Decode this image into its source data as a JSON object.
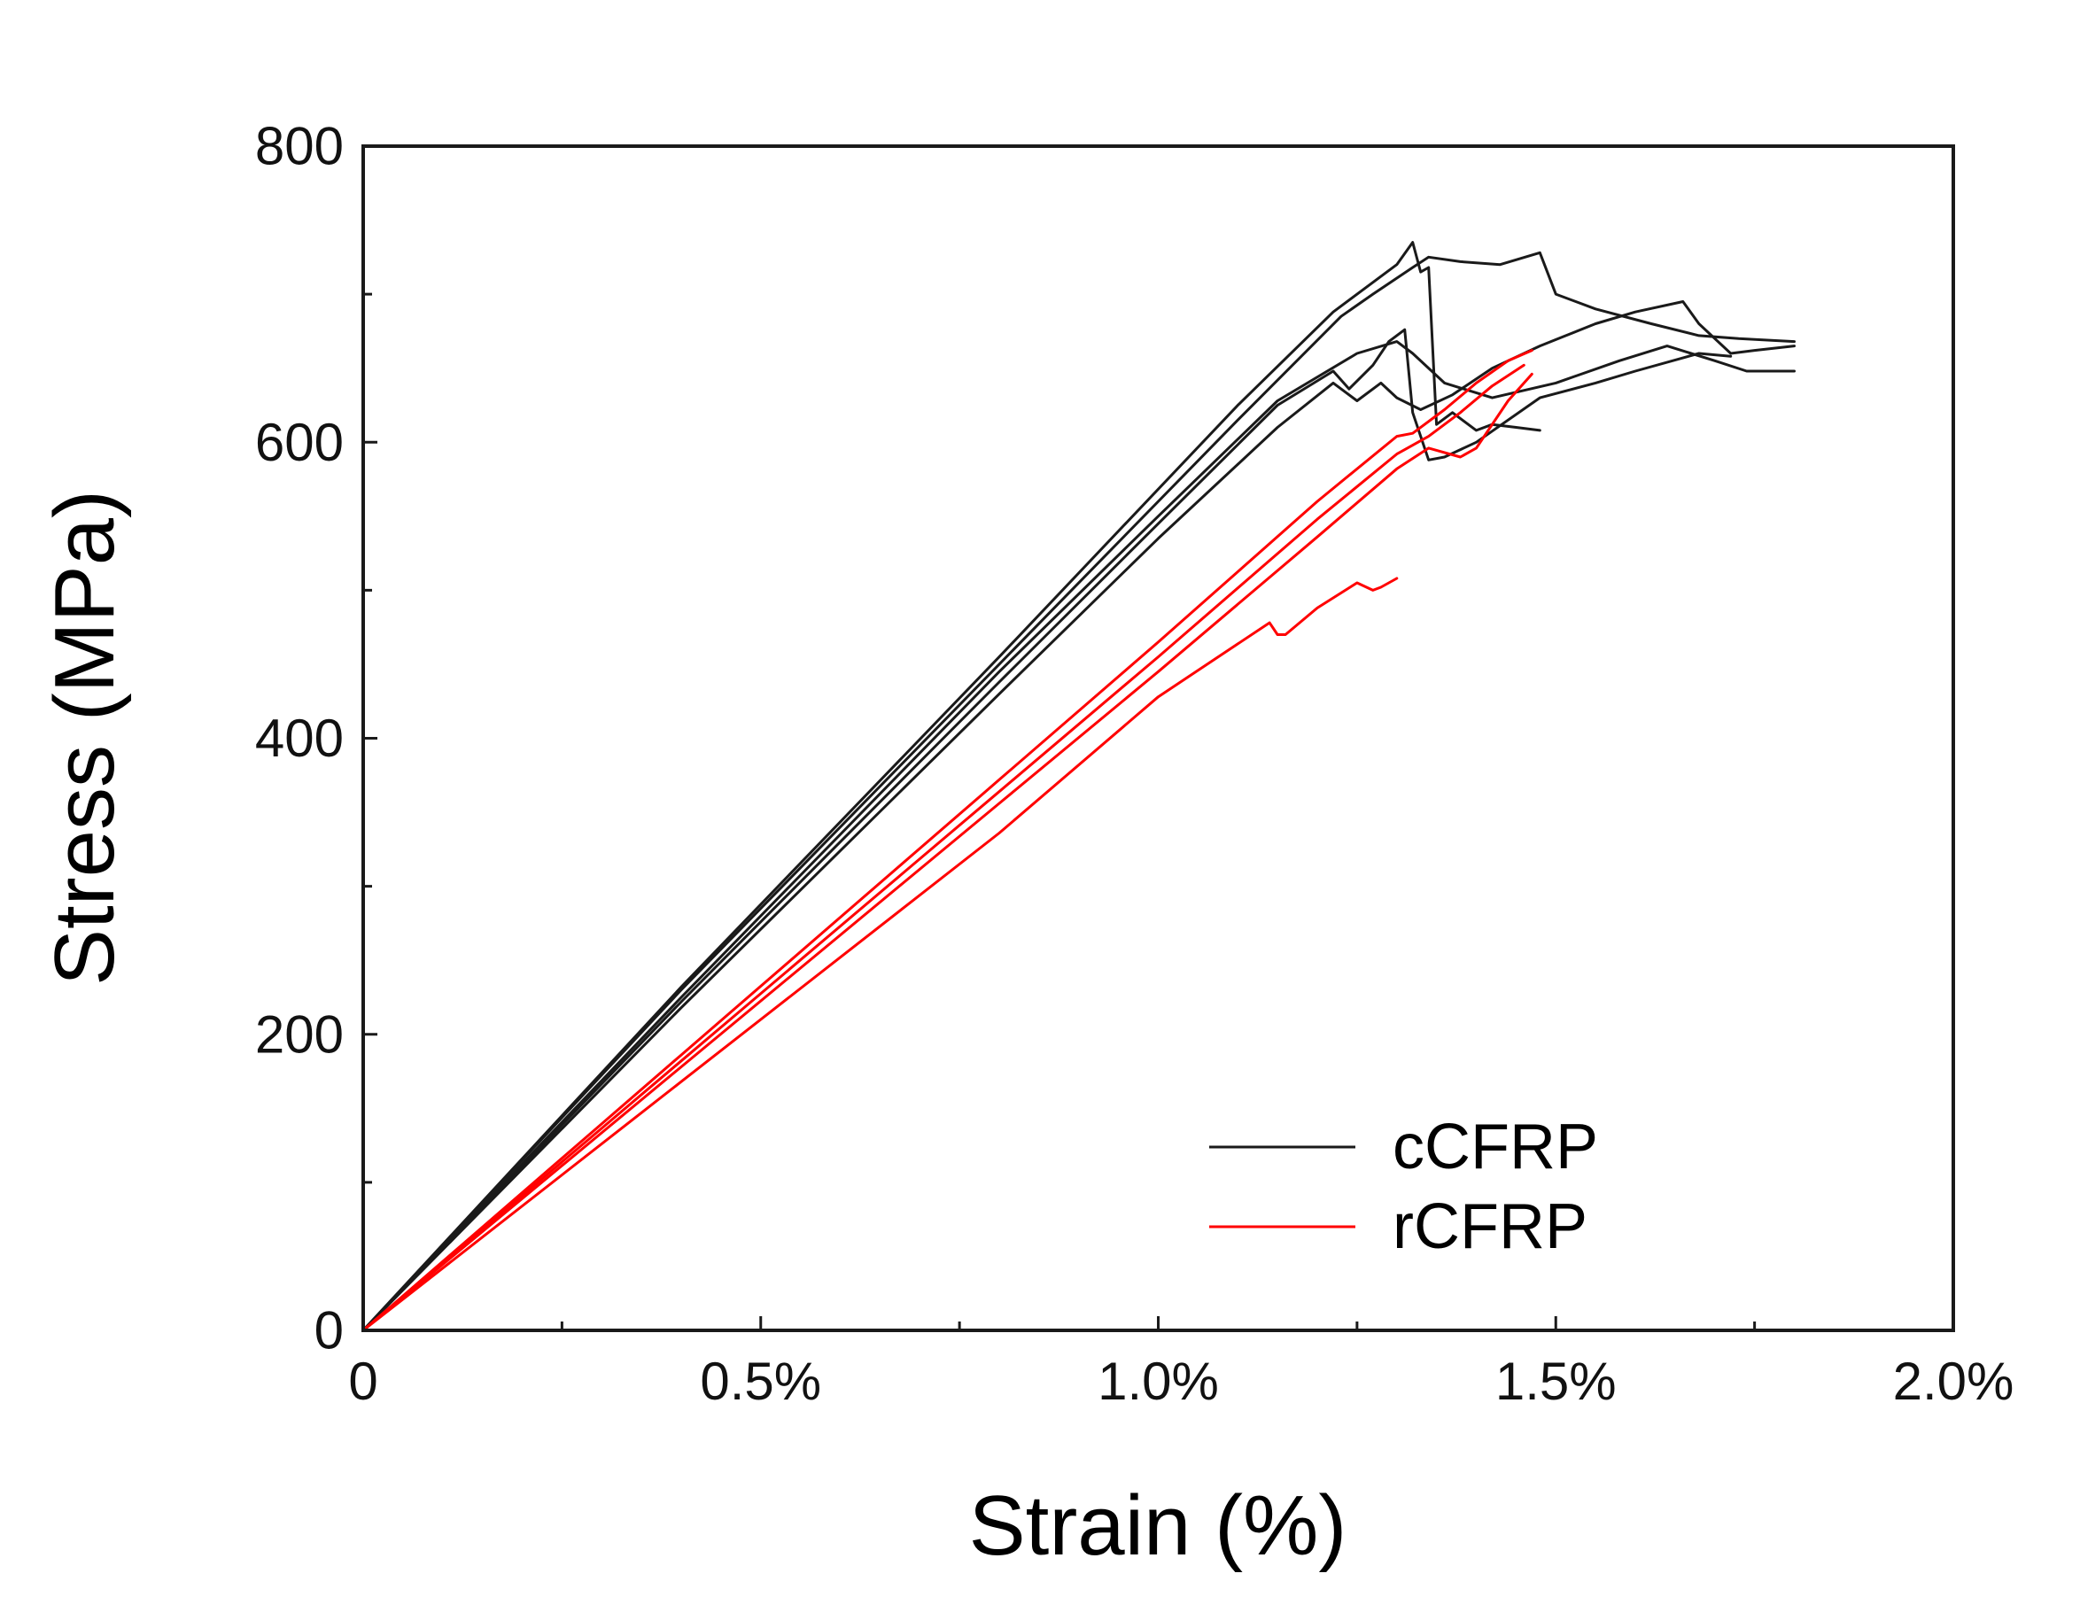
{
  "chart_data": {
    "type": "line",
    "title": "",
    "xlabel": "Strain (%)",
    "ylabel": "Stress (MPa)",
    "xlim": [
      0,
      2.0
    ],
    "ylim": [
      0,
      800
    ],
    "x_ticks": [
      0,
      0.5,
      1.0,
      1.5,
      2.0
    ],
    "x_tick_labels": [
      "0",
      "0.5%",
      "1.0%",
      "1.5%",
      "2.0%"
    ],
    "y_ticks": [
      0,
      200,
      400,
      600,
      800
    ],
    "y_tick_labels": [
      "0",
      "200",
      "400",
      "600",
      "800"
    ],
    "grid": false,
    "legend_position": "bottom-right",
    "legend": [
      {
        "label": "cCFRP",
        "color": "#1a1a1a"
      },
      {
        "label": "rCFRP",
        "color": "#ff0000"
      }
    ],
    "series": [
      {
        "name": "cCFRP",
        "color": "#1a1a1a",
        "points": [
          [
            0,
            0
          ],
          [
            0.4,
            232
          ],
          [
            0.8,
            455
          ],
          [
            1.1,
            625
          ],
          [
            1.22,
            688
          ],
          [
            1.3,
            720
          ],
          [
            1.32,
            735
          ],
          [
            1.33,
            715
          ],
          [
            1.34,
            718
          ],
          [
            1.35,
            612
          ],
          [
            1.37,
            620
          ],
          [
            1.4,
            608
          ],
          [
            1.42,
            612
          ],
          [
            1.45,
            610
          ],
          [
            1.48,
            608
          ]
        ]
      },
      {
        "name": "cCFRP",
        "color": "#1a1a1a",
        "points": [
          [
            0,
            0
          ],
          [
            0.4,
            230
          ],
          [
            0.8,
            450
          ],
          [
            1.1,
            615
          ],
          [
            1.23,
            685
          ],
          [
            1.27,
            700
          ],
          [
            1.32,
            718
          ],
          [
            1.34,
            725
          ],
          [
            1.38,
            722
          ],
          [
            1.43,
            720
          ],
          [
            1.48,
            728
          ],
          [
            1.5,
            700
          ],
          [
            1.55,
            690
          ],
          [
            1.62,
            680
          ],
          [
            1.68,
            672
          ],
          [
            1.73,
            670
          ],
          [
            1.8,
            668
          ]
        ]
      },
      {
        "name": "cCFRP",
        "color": "#1a1a1a",
        "points": [
          [
            0,
            0
          ],
          [
            0.4,
            222
          ],
          [
            0.8,
            438
          ],
          [
            1.0,
            545
          ],
          [
            1.15,
            625
          ],
          [
            1.22,
            648
          ],
          [
            1.24,
            636
          ],
          [
            1.27,
            652
          ],
          [
            1.29,
            668
          ],
          [
            1.31,
            676
          ],
          [
            1.32,
            620
          ],
          [
            1.34,
            588
          ],
          [
            1.36,
            590
          ],
          [
            1.4,
            600
          ],
          [
            1.48,
            630
          ],
          [
            1.55,
            640
          ],
          [
            1.6,
            648
          ],
          [
            1.68,
            660
          ],
          [
            1.72,
            658
          ]
        ]
      },
      {
        "name": "cCFRP",
        "color": "#1a1a1a",
        "points": [
          [
            0,
            0
          ],
          [
            0.4,
            218
          ],
          [
            0.8,
            430
          ],
          [
            1.0,
            535
          ],
          [
            1.15,
            610
          ],
          [
            1.22,
            640
          ],
          [
            1.25,
            628
          ],
          [
            1.28,
            640
          ],
          [
            1.3,
            630
          ],
          [
            1.33,
            622
          ],
          [
            1.37,
            632
          ],
          [
            1.42,
            650
          ],
          [
            1.48,
            665
          ],
          [
            1.55,
            680
          ],
          [
            1.6,
            688
          ],
          [
            1.66,
            695
          ],
          [
            1.68,
            680
          ],
          [
            1.72,
            660
          ],
          [
            1.75,
            662
          ],
          [
            1.8,
            665
          ]
        ]
      },
      {
        "name": "cCFRP",
        "color": "#1a1a1a",
        "points": [
          [
            0,
            0
          ],
          [
            0.4,
            225
          ],
          [
            0.8,
            445
          ],
          [
            1.0,
            550
          ],
          [
            1.15,
            628
          ],
          [
            1.25,
            660
          ],
          [
            1.3,
            668
          ],
          [
            1.32,
            660
          ],
          [
            1.36,
            640
          ],
          [
            1.42,
            630
          ],
          [
            1.5,
            640
          ],
          [
            1.58,
            655
          ],
          [
            1.64,
            665
          ],
          [
            1.7,
            655
          ],
          [
            1.74,
            648
          ],
          [
            1.8,
            648
          ]
        ]
      },
      {
        "name": "rCFRP",
        "color": "#ff0000",
        "points": [
          [
            0,
            0
          ],
          [
            0.4,
            186
          ],
          [
            0.8,
            372
          ],
          [
            1.0,
            465
          ],
          [
            1.2,
            560
          ],
          [
            1.3,
            604
          ],
          [
            1.32,
            606
          ],
          [
            1.36,
            622
          ],
          [
            1.4,
            640
          ],
          [
            1.44,
            655
          ],
          [
            1.47,
            662
          ]
        ]
      },
      {
        "name": "rCFRP",
        "color": "#ff0000",
        "points": [
          [
            0,
            0
          ],
          [
            0.4,
            182
          ],
          [
            0.8,
            364
          ],
          [
            1.0,
            455
          ],
          [
            1.2,
            548
          ],
          [
            1.3,
            592
          ],
          [
            1.34,
            604
          ],
          [
            1.38,
            620
          ],
          [
            1.42,
            638
          ],
          [
            1.46,
            652
          ]
        ]
      },
      {
        "name": "rCFRP",
        "color": "#ff0000",
        "points": [
          [
            0,
            0
          ],
          [
            0.4,
            178
          ],
          [
            0.8,
            356
          ],
          [
            1.0,
            445
          ],
          [
            1.2,
            536
          ],
          [
            1.3,
            582
          ],
          [
            1.34,
            596
          ],
          [
            1.38,
            590
          ],
          [
            1.4,
            596
          ],
          [
            1.44,
            628
          ],
          [
            1.47,
            646
          ]
        ]
      },
      {
        "name": "rCFRP",
        "color": "#ff0000",
        "points": [
          [
            0,
            0
          ],
          [
            0.4,
            168
          ],
          [
            0.8,
            336
          ],
          [
            1.0,
            428
          ],
          [
            1.14,
            478
          ],
          [
            1.15,
            470
          ],
          [
            1.16,
            470
          ],
          [
            1.2,
            488
          ],
          [
            1.25,
            505
          ],
          [
            1.27,
            500
          ],
          [
            1.28,
            502
          ],
          [
            1.3,
            508
          ]
        ]
      }
    ]
  }
}
